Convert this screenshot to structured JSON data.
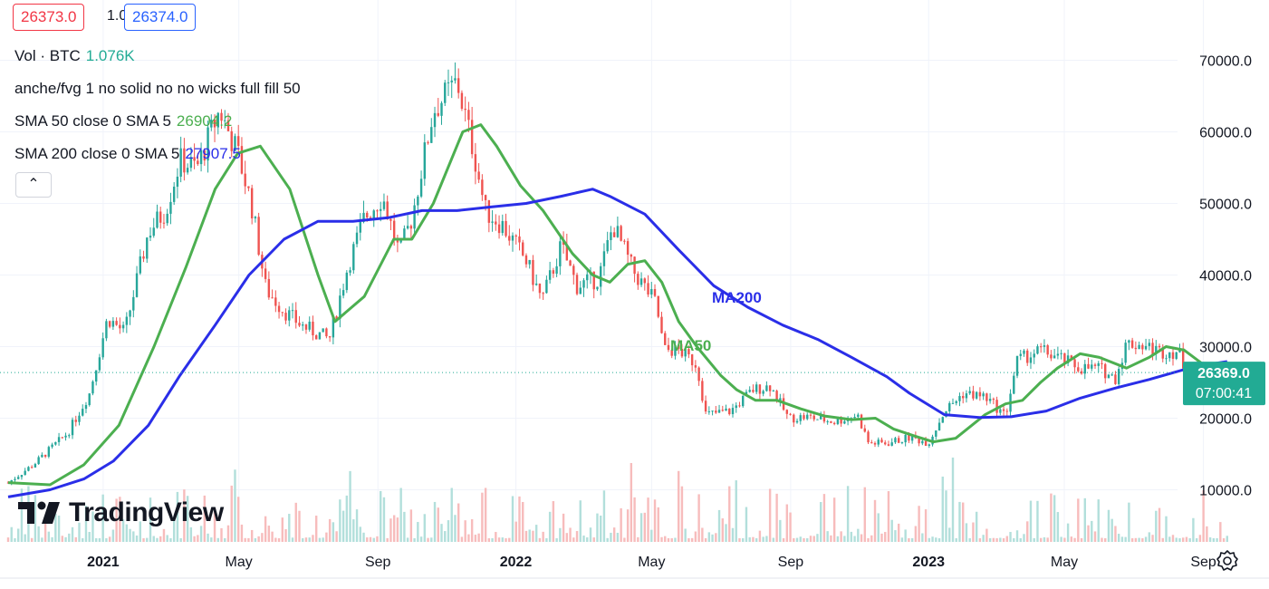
{
  "header": {
    "bid": "26373.0",
    "spread": "1.0",
    "ask": "26374.0"
  },
  "legend": {
    "volume": {
      "label": "Vol · BTC",
      "value": "1.076K",
      "color": "#22ab94"
    },
    "indicator": {
      "label": "anche/fvg 1 no solid no no wicks full fill 50"
    },
    "sma50": {
      "label": "SMA 50 close 0 SMA 5",
      "value": "26904.2",
      "color": "#4caf50"
    },
    "sma200": {
      "label": "SMA 200 close 0 SMA 5",
      "value": "27907.5",
      "color": "#2a2ee8"
    }
  },
  "branding": {
    "logo_text": "TradingView"
  },
  "colors": {
    "up": "#26a69a",
    "down": "#ef5350",
    "price_badge": "#22ab94"
  },
  "chart_data": {
    "type": "line",
    "title": "",
    "y_axis": {
      "ticks": [
        10000,
        20000,
        30000,
        40000,
        50000,
        60000,
        70000
      ],
      "tick_labels": [
        "10000.0",
        "20000.0",
        "30000.0",
        "40000.0",
        "50000.0",
        "60000.0",
        "70000.0"
      ],
      "position": "right"
    },
    "x_axis": {
      "ticks": [
        "2021-01-01",
        "2021-05-01",
        "2021-09-01",
        "2022-01-01",
        "2022-05-01",
        "2022-09-01",
        "2023-01-01",
        "2023-05-01",
        "2023-09-01"
      ],
      "tick_labels": [
        "2021",
        "May",
        "Sep",
        "2022",
        "May",
        "Sep",
        "2023",
        "May",
        "Sep"
      ]
    },
    "last_price": {
      "value": "26369.0",
      "countdown": "07:00:41"
    },
    "annotations": [
      {
        "text": "MA200",
        "series": "SMA 200",
        "color": "#2a2ee8"
      },
      {
        "text": "MA50",
        "series": "SMA 50",
        "color": "#4caf50"
      }
    ],
    "series": [
      {
        "name": "BTC price",
        "style": "candles",
        "x": [
          "2020-10-09",
          "2020-11-01",
          "2020-12-01",
          "2020-12-20",
          "2021-01-05",
          "2021-01-20",
          "2021-02-10",
          "2021-02-25",
          "2021-03-10",
          "2021-03-25",
          "2021-04-14",
          "2021-04-30",
          "2021-05-12",
          "2021-05-25",
          "2021-06-10",
          "2021-06-25",
          "2021-07-20",
          "2021-08-05",
          "2021-08-20",
          "2021-09-05",
          "2021-09-20",
          "2021-10-01",
          "2021-10-20",
          "2021-11-10",
          "2021-11-25",
          "2021-12-05",
          "2021-12-20",
          "2022-01-10",
          "2022-01-24",
          "2022-02-10",
          "2022-02-24",
          "2022-03-15",
          "2022-03-28",
          "2022-04-15",
          "2022-05-05",
          "2022-05-12",
          "2022-05-25",
          "2022-06-10",
          "2022-06-18",
          "2022-07-10",
          "2022-07-30",
          "2022-08-14",
          "2022-08-30",
          "2022-09-15",
          "2022-10-10",
          "2022-10-30",
          "2022-11-09",
          "2022-11-25",
          "2022-12-15",
          "2023-01-01",
          "2023-01-15",
          "2023-02-01",
          "2023-02-20",
          "2023-03-10",
          "2023-03-20",
          "2023-04-10",
          "2023-04-25",
          "2023-05-15",
          "2023-06-01",
          "2023-06-15",
          "2023-06-25",
          "2023-07-10",
          "2023-07-25",
          "2023-08-10",
          "2023-08-18",
          "2023-09-01",
          "2023-09-15",
          "2023-09-22"
        ],
        "values": [
          11000,
          13600,
          18000,
          23500,
          34000,
          32000,
          46000,
          49000,
          56000,
          55000,
          63000,
          57000,
          50000,
          38000,
          35000,
          33000,
          31000,
          41000,
          48000,
          51000,
          43000,
          48000,
          63000,
          67000,
          57000,
          49000,
          47000,
          42000,
          36500,
          44000,
          38500,
          39500,
          47000,
          40500,
          36000,
          29500,
          29500,
          27500,
          20500,
          21000,
          24000,
          24500,
          20000,
          20200,
          19500,
          20500,
          16500,
          16500,
          17300,
          16600,
          21000,
          23500,
          23000,
          20300,
          28000,
          29500,
          28500,
          27000,
          27000,
          25500,
          30500,
          30200,
          29300,
          29300,
          26000,
          25800,
          26500,
          26369
        ]
      },
      {
        "name": "SMA 50",
        "style": "line",
        "x": [
          "2020-10-09",
          "2020-11-15",
          "2020-12-15",
          "2021-01-15",
          "2021-02-15",
          "2021-03-15",
          "2021-04-10",
          "2021-04-30",
          "2021-05-20",
          "2021-06-15",
          "2021-07-10",
          "2021-07-25",
          "2021-08-20",
          "2021-09-15",
          "2021-10-01",
          "2021-10-20",
          "2021-11-15",
          "2021-12-01",
          "2021-12-15",
          "2022-01-05",
          "2022-01-25",
          "2022-02-20",
          "2022-03-10",
          "2022-03-25",
          "2022-04-10",
          "2022-04-25",
          "2022-05-10",
          "2022-05-25",
          "2022-06-10",
          "2022-07-01",
          "2022-07-15",
          "2022-08-01",
          "2022-08-20",
          "2022-09-10",
          "2022-10-01",
          "2022-10-25",
          "2022-11-15",
          "2022-12-01",
          "2022-12-20",
          "2023-01-05",
          "2023-01-25",
          "2023-02-20",
          "2023-03-10",
          "2023-03-25",
          "2023-04-10",
          "2023-04-25",
          "2023-05-15",
          "2023-06-01",
          "2023-06-25",
          "2023-07-15",
          "2023-07-30",
          "2023-08-15",
          "2023-09-01",
          "2023-09-22"
        ],
        "values": [
          11000,
          10700,
          13500,
          19000,
          30000,
          41000,
          52000,
          57000,
          58000,
          52000,
          40000,
          33500,
          37000,
          45000,
          45000,
          50000,
          60000,
          61000,
          58000,
          52500,
          49000,
          43000,
          40000,
          39000,
          41500,
          42000,
          39000,
          33500,
          30000,
          26000,
          24000,
          22500,
          22500,
          21300,
          20300,
          19800,
          20000,
          18500,
          17500,
          16700,
          17200,
          20500,
          22000,
          22500,
          25000,
          27000,
          29000,
          28500,
          27000,
          28500,
          30000,
          29500,
          27500,
          26904
        ]
      },
      {
        "name": "SMA 200",
        "style": "line",
        "x": [
          "2020-10-09",
          "2020-11-15",
          "2020-12-15",
          "2021-01-10",
          "2021-02-10",
          "2021-03-10",
          "2021-04-10",
          "2021-05-10",
          "2021-06-10",
          "2021-07-10",
          "2021-08-10",
          "2021-09-10",
          "2021-10-10",
          "2021-11-10",
          "2021-12-10",
          "2022-01-10",
          "2022-02-10",
          "2022-03-10",
          "2022-03-25",
          "2022-04-25",
          "2022-05-25",
          "2022-06-25",
          "2022-07-25",
          "2022-08-25",
          "2022-09-25",
          "2022-10-25",
          "2022-11-25",
          "2022-12-15",
          "2023-01-15",
          "2023-02-15",
          "2023-03-15",
          "2023-04-15",
          "2023-05-15",
          "2023-06-15",
          "2023-07-15",
          "2023-08-15",
          "2023-09-01",
          "2023-09-22"
        ],
        "values": [
          9000,
          10000,
          11500,
          14000,
          19000,
          26000,
          33000,
          40000,
          45000,
          47500,
          47500,
          48000,
          49000,
          49000,
          49500,
          50000,
          51000,
          52000,
          51000,
          48500,
          43500,
          38500,
          35500,
          33000,
          31000,
          28500,
          25800,
          23500,
          20500,
          20100,
          20200,
          21000,
          22800,
          24200,
          25400,
          26800,
          27400,
          27907
        ]
      }
    ]
  }
}
